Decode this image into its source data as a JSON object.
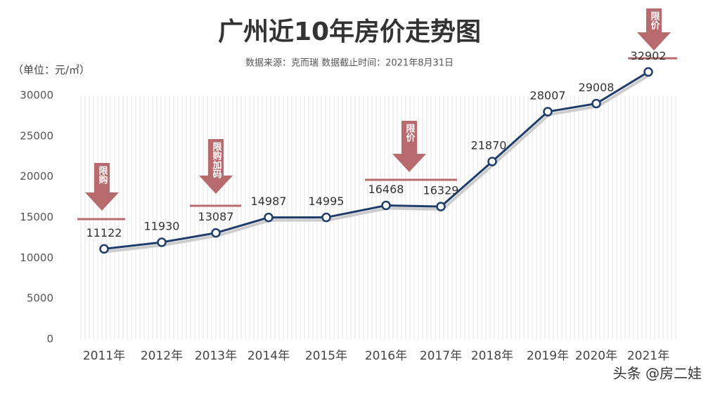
{
  "chart_data": {
    "type": "line",
    "title": "广州近10年房价走势图",
    "subtitle": "数据来源：克而瑞   数据截止时间：2021年8月31日",
    "y_label": "（单位：元/㎡）",
    "categories": [
      "2011年",
      "2012年",
      "2013年",
      "2014年",
      "2015年",
      "2016年",
      "2017年",
      "2018年",
      "2019年",
      "2020年",
      "2021年"
    ],
    "series": [
      {
        "name": "房价",
        "color": "#1f3d6b",
        "values": [
          11122,
          11930,
          13087,
          14987,
          14995,
          16468,
          16329,
          21870,
          28007,
          29008,
          32902
        ]
      }
    ],
    "ylim": [
      0,
      30000
    ],
    "yticks": [
      0,
      5000,
      10000,
      15000,
      20000,
      25000,
      30000
    ],
    "annotations": [
      "限购",
      "限购加码",
      "限价",
      "限价"
    ],
    "annotation_color": "#b86b6e",
    "watermark": "头条 @房二娃"
  }
}
